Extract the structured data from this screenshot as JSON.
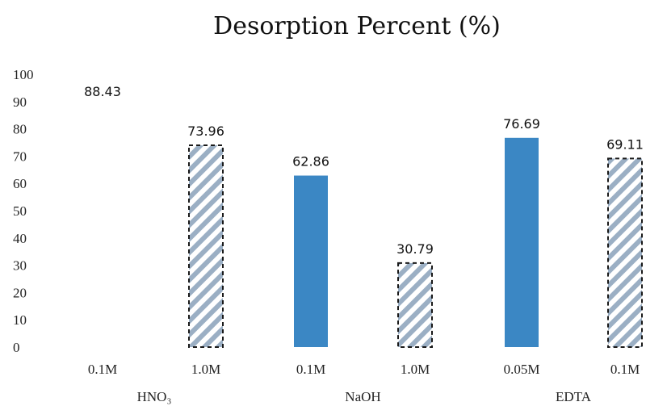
{
  "chart_data": {
    "type": "bar",
    "title": "Desorption Percent (%)",
    "xlabel": "",
    "ylabel": "",
    "ylim": [
      0,
      100
    ],
    "yticks": [
      0,
      10,
      20,
      30,
      40,
      50,
      60,
      70,
      80,
      90,
      100
    ],
    "grid": false,
    "legend": "none",
    "categories": [
      "0.1M",
      "1.0M",
      "0.1M",
      "1.0M",
      "0.05M",
      "0.1M"
    ],
    "groups": [
      {
        "name": "HNO₃",
        "categories": [
          0,
          1
        ]
      },
      {
        "name": "NaOH",
        "categories": [
          2,
          3
        ]
      },
      {
        "name": "EDTA",
        "categories": [
          4,
          5
        ]
      }
    ],
    "values": [
      88.43,
      73.96,
      62.86,
      30.79,
      76.69,
      69.11
    ],
    "data_labels": [
      "88.43",
      "73.96",
      "62.86",
      "30.79",
      "76.69",
      "69.11"
    ],
    "bar_styles": [
      "hidden",
      "hatched",
      "solid",
      "hatched",
      "solid",
      "hatched"
    ],
    "colors": {
      "solid": "#3b87c4",
      "hatch": "#9bafc4",
      "hatch_border": "#1a1a1a",
      "text": "#111111"
    }
  }
}
